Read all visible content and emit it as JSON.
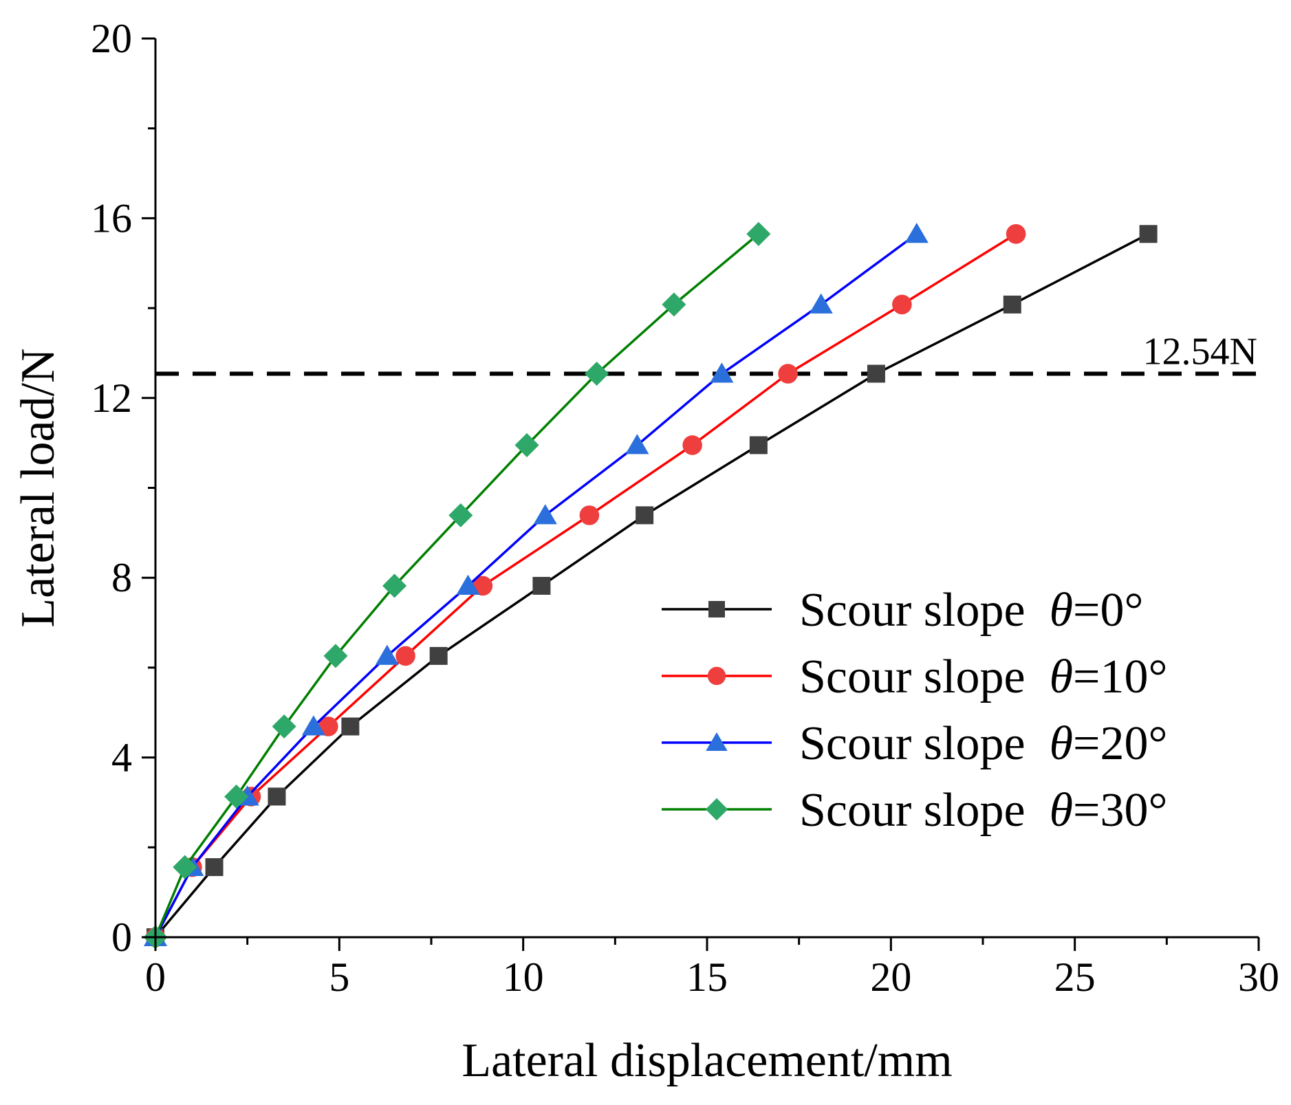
{
  "chart_data": {
    "type": "line",
    "title": "",
    "xlabel": "Lateral displacement/mm",
    "ylabel": "Lateral load/N",
    "xlim": [
      0,
      30
    ],
    "ylim": [
      0,
      20
    ],
    "xticks": [
      0,
      5,
      10,
      15,
      20,
      25,
      30
    ],
    "xtick_labels": [
      "0",
      "5",
      "10",
      "15",
      "20",
      "25",
      "30"
    ],
    "yticks": [
      0,
      4,
      8,
      12,
      16,
      20
    ],
    "ytick_labels": [
      "0",
      "4",
      "8",
      "12",
      "16",
      "20"
    ],
    "grid": false,
    "legend_position": "right",
    "reference_line": {
      "y": 12.54,
      "label": "12.54N",
      "style": "dashed",
      "color": "#000000"
    },
    "series": [
      {
        "name": "Scour slope  θ=0°",
        "label_prefix": "Scour slope  ",
        "label_symbol": "θ",
        "label_suffix": "=0°",
        "color": "#000000",
        "marker_color": "#404040",
        "marker": "square",
        "x": [
          0,
          1.6,
          3.3,
          5.3,
          7.7,
          10.5,
          13.3,
          16.4,
          19.6,
          23.3,
          27.0
        ],
        "y": [
          0,
          1.56,
          3.13,
          4.69,
          6.26,
          7.82,
          9.39,
          10.95,
          12.54,
          14.08,
          15.65
        ]
      },
      {
        "name": "Scour slope  θ=10°",
        "label_prefix": "Scour slope  ",
        "label_symbol": "θ",
        "label_suffix": "=10°",
        "color": "#ff0000",
        "marker_color": "#ef3e3e",
        "marker": "circle",
        "x": [
          0,
          1.0,
          2.6,
          4.7,
          6.8,
          8.9,
          11.8,
          14.6,
          17.2,
          20.3,
          23.4
        ],
        "y": [
          0,
          1.56,
          3.13,
          4.69,
          6.26,
          7.82,
          9.39,
          10.95,
          12.54,
          14.08,
          15.65
        ]
      },
      {
        "name": "Scour slope  θ=20°",
        "label_prefix": "Scour slope  ",
        "label_symbol": "θ",
        "label_suffix": "=20°",
        "color": "#0000ff",
        "marker_color": "#2a6fdb",
        "marker": "triangle",
        "x": [
          0,
          1.0,
          2.5,
          4.3,
          6.3,
          8.5,
          10.6,
          13.1,
          15.4,
          18.1,
          20.7
        ],
        "y": [
          0,
          1.56,
          3.13,
          4.69,
          6.26,
          7.82,
          9.39,
          10.95,
          12.54,
          14.08,
          15.65
        ]
      },
      {
        "name": "Scour slope  θ=30°",
        "label_prefix": "Scour slope  ",
        "label_symbol": "θ",
        "label_suffix": "=30°",
        "color": "#007f00",
        "marker_color": "#2ea868",
        "marker": "diamond",
        "x": [
          0,
          0.8,
          2.2,
          3.5,
          4.9,
          6.5,
          8.3,
          10.1,
          12.0,
          14.1,
          16.4
        ],
        "y": [
          0,
          1.56,
          3.13,
          4.69,
          6.26,
          7.82,
          9.39,
          10.95,
          12.54,
          14.08,
          15.65
        ]
      }
    ]
  }
}
